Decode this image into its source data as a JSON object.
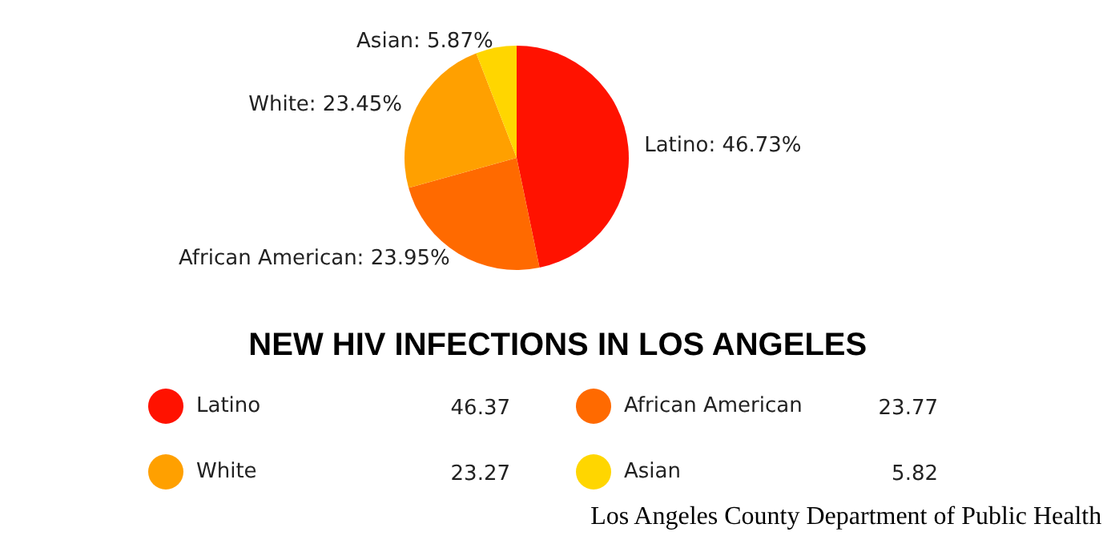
{
  "chart_data": {
    "type": "pie",
    "title": "NEW HIV INFECTIONS IN LOS ANGELES",
    "categories": [
      "Latino",
      "African American",
      "White",
      "Asian"
    ],
    "values": [
      46.73,
      23.95,
      23.45,
      5.87
    ],
    "value_labels": [
      "Latino: 46.73%",
      "African American: 23.95%",
      "White: 23.45%",
      "Asian: 5.87%"
    ],
    "colors": [
      "#ff1200",
      "#ff6a00",
      "#ffa000",
      "#ffd600"
    ],
    "legend": "bottom",
    "annotations": [
      "46.37",
      "23.77",
      "23.27",
      "5.82",
      "Los Angeles County Department of Public Health"
    ]
  }
}
